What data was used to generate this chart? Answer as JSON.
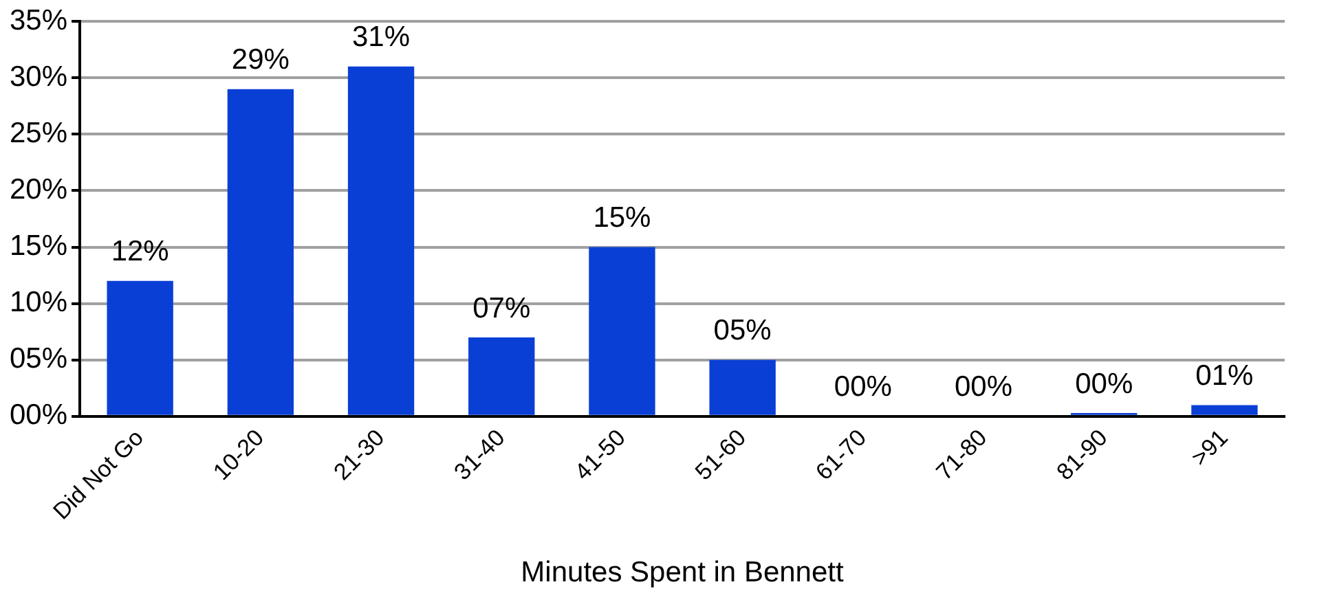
{
  "chart_data": {
    "type": "bar",
    "xlabel": "Minutes Spent in Bennett",
    "categories": [
      "Did Not Go",
      "10-20",
      "21-30",
      "31-40",
      "41-50",
      "51-60",
      "61-70",
      "71-80",
      "81-90",
      ">91"
    ],
    "values": [
      12,
      29,
      31,
      7,
      15,
      5,
      0,
      0,
      0.3,
      1
    ],
    "value_labels": [
      "12%",
      "29%",
      "31%",
      "07%",
      "15%",
      "05%",
      "00%",
      "00%",
      "00%",
      "01%"
    ],
    "color": "#0a3fd6",
    "ylim": [
      0,
      35
    ],
    "yticks": [
      {
        "value": 0,
        "label": "00%"
      },
      {
        "value": 5,
        "label": "05%"
      },
      {
        "value": 10,
        "label": "10%"
      },
      {
        "value": 15,
        "label": "15%"
      },
      {
        "value": 20,
        "label": "20%"
      },
      {
        "value": 25,
        "label": "25%"
      },
      {
        "value": 30,
        "label": "30%"
      },
      {
        "value": 35,
        "label": "35%"
      }
    ],
    "grid": "y",
    "legend": false
  }
}
